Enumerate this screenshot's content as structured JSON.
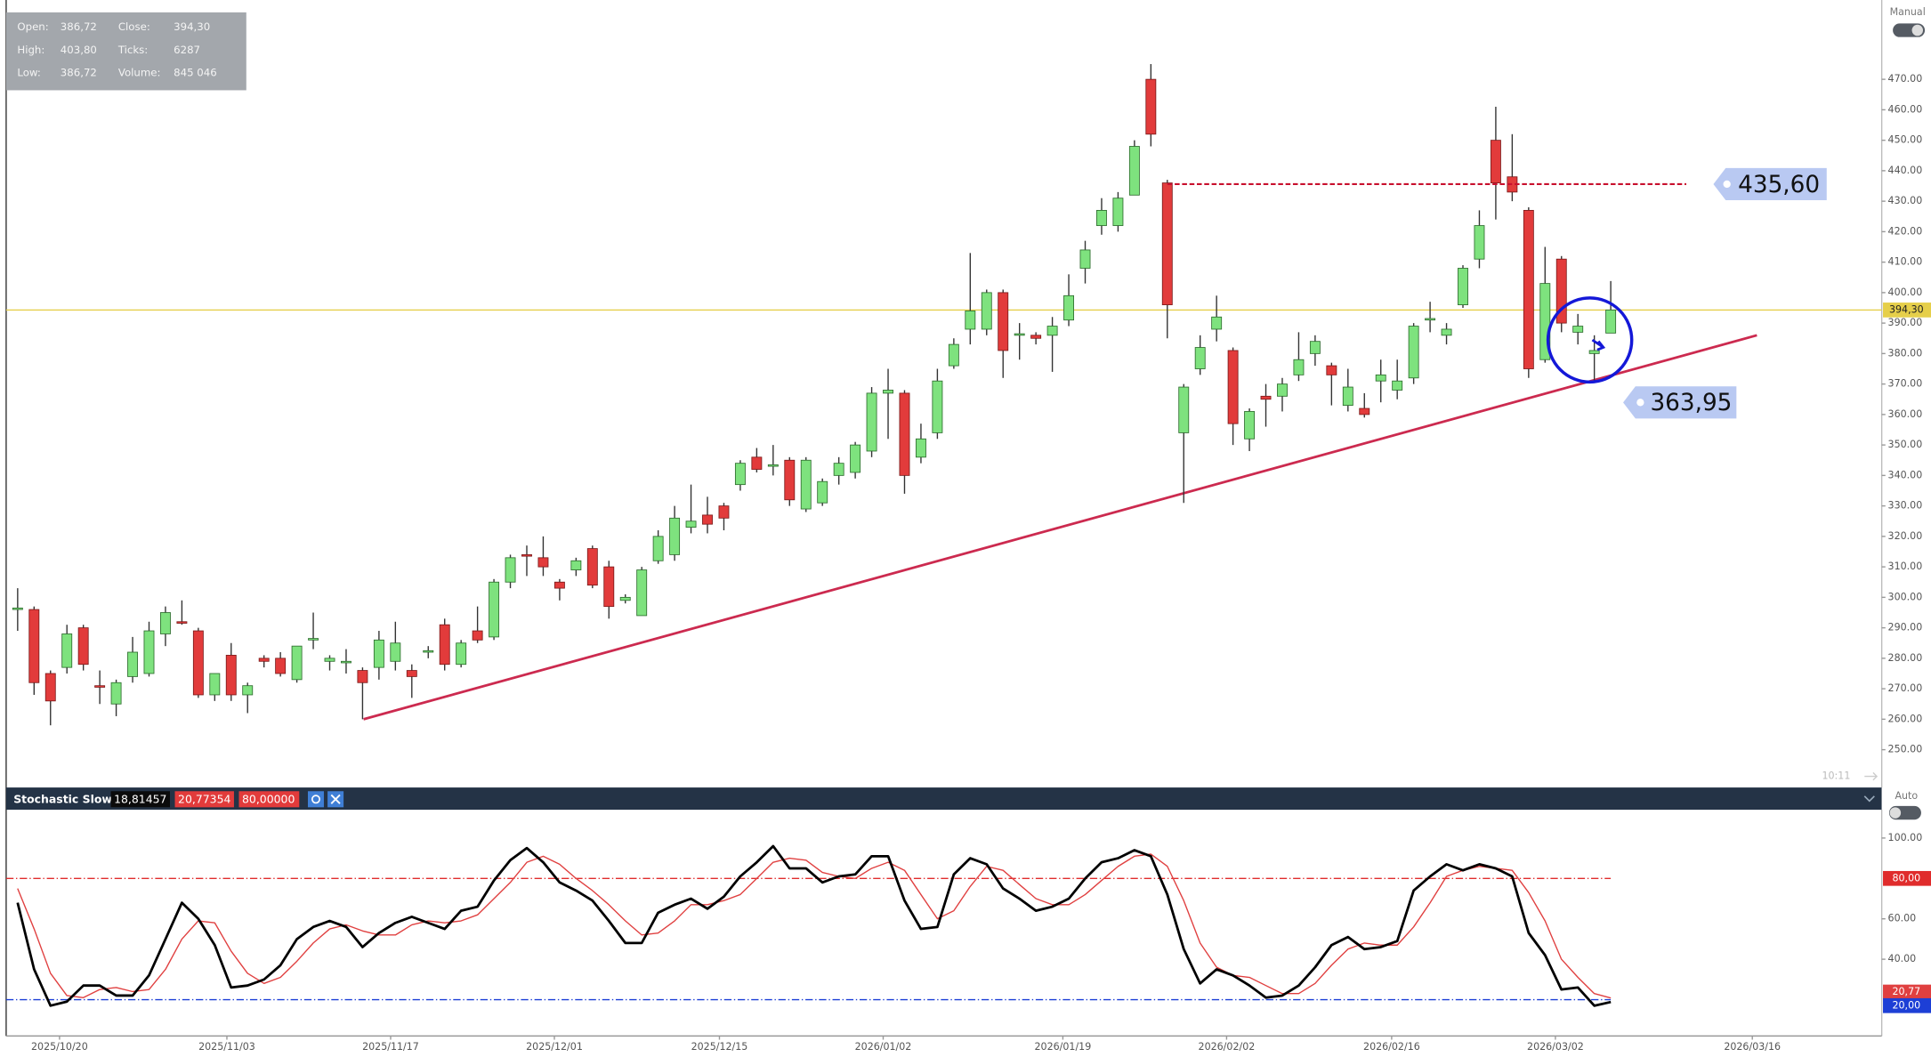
{
  "chart_data": [
    {
      "type": "candlestick",
      "open": [
        296,
        296,
        275,
        277,
        290,
        271,
        265,
        274,
        275,
        288,
        292,
        289,
        268,
        281,
        268,
        280,
        280,
        273,
        286,
        279,
        279,
        276,
        277,
        279,
        276,
        282,
        291,
        278,
        289,
        287,
        305,
        314,
        313,
        305,
        309,
        316,
        310,
        299,
        294,
        312,
        314,
        323,
        327,
        330,
        337,
        346,
        343,
        345,
        329,
        331,
        340,
        341,
        348,
        367,
        367,
        346,
        354,
        376,
        388,
        388,
        400,
        386,
        386,
        386,
        391,
        408,
        422,
        422,
        432,
        470,
        436,
        354,
        375,
        388,
        381,
        352,
        366,
        366,
        373,
        380,
        376,
        363,
        362,
        371,
        368,
        372,
        391,
        386,
        396,
        411,
        450,
        438,
        427,
        378,
        411,
        387,
        380,
        386.72
      ],
      "high": [
        303,
        297,
        276,
        291,
        291,
        276,
        273,
        287,
        292,
        297,
        299,
        290,
        275,
        285,
        272,
        281,
        282,
        284,
        295,
        281,
        283,
        277,
        289,
        292,
        278,
        284,
        293,
        286,
        297,
        306,
        314,
        317,
        320,
        306,
        313,
        317,
        312,
        301,
        310,
        322,
        330,
        337,
        333,
        331,
        345,
        349,
        350,
        346,
        346,
        339,
        346,
        351,
        369,
        375,
        368,
        357,
        375,
        385,
        413,
        401,
        401,
        390,
        387,
        392,
        406,
        417,
        431,
        433,
        450,
        475,
        437,
        370,
        386,
        399,
        382,
        362,
        370,
        372,
        387,
        386,
        377,
        375,
        367,
        378,
        378,
        390,
        397,
        390,
        409,
        427,
        461,
        452,
        428,
        415,
        412,
        393,
        386,
        403.8
      ],
      "low": [
        289,
        268,
        258,
        275,
        276,
        265,
        261,
        272,
        274,
        284,
        291,
        267,
        266,
        266,
        262,
        277,
        274,
        272,
        283,
        276,
        275,
        260,
        273,
        276,
        267,
        280,
        276,
        277,
        285,
        286,
        303,
        307,
        307,
        299,
        307,
        303,
        293,
        298,
        294,
        311,
        312,
        321,
        321,
        322,
        335,
        341,
        340,
        330,
        328,
        330,
        337,
        339,
        346,
        352,
        334,
        344,
        352,
        375,
        383,
        386,
        372,
        378,
        383,
        374,
        389,
        403,
        419,
        420,
        432,
        448,
        385,
        331,
        373,
        384,
        350,
        348,
        356,
        361,
        371,
        376,
        363,
        361,
        359,
        364,
        365,
        370,
        387,
        383,
        395,
        408,
        424,
        430,
        372,
        377,
        387,
        383,
        371,
        386.72
      ],
      "close": [
        296.5,
        272,
        266,
        288,
        278,
        270.5,
        272,
        282,
        289,
        295,
        291.5,
        268,
        275,
        268,
        271,
        279,
        275,
        284,
        286.5,
        280,
        279,
        272,
        286,
        285,
        274,
        282.5,
        278,
        285,
        286,
        305,
        313,
        313.5,
        310,
        303,
        312,
        304,
        297,
        300,
        309,
        320,
        326,
        325,
        324,
        326,
        344,
        342,
        343.5,
        332,
        345,
        338,
        344,
        350,
        367,
        368,
        340,
        352,
        371,
        383,
        394,
        400,
        381,
        386.5,
        385,
        389,
        399,
        414,
        427,
        431,
        448,
        452,
        396,
        369,
        382,
        392,
        357,
        361,
        365,
        370,
        378,
        384,
        373,
        369,
        360,
        373,
        371,
        389,
        391.5,
        388,
        408,
        422,
        436,
        433,
        375,
        403,
        390,
        389,
        381,
        394.3
      ],
      "up_color": "#7ee27e",
      "down_color": "#e23b3b",
      "xlim": [
        -0.7,
        113.5
      ],
      "ylim": [
        238,
        494
      ],
      "xticks": [
        {
          "value": 2.55,
          "label": "2025/10/20"
        },
        {
          "value": 12.74,
          "label": "2025/11/03"
        },
        {
          "value": 22.71,
          "label": "2025/11/17"
        },
        {
          "value": 32.68,
          "label": "2025/12/01"
        },
        {
          "value": 42.73,
          "label": "2025/12/15"
        },
        {
          "value": 52.7,
          "label": "2026/01/02"
        },
        {
          "value": 63.64,
          "label": "2026/01/19"
        },
        {
          "value": 73.61,
          "label": "2026/02/02"
        },
        {
          "value": 83.66,
          "label": "2026/02/16"
        },
        {
          "value": 93.63,
          "label": "2026/03/02"
        },
        {
          "value": 105.62,
          "label": "2026/03/16"
        }
      ],
      "yticks": [
        {
          "value": 250,
          "label": "250.00"
        },
        {
          "value": 260,
          "label": "260.00"
        },
        {
          "value": 270,
          "label": "270.00"
        },
        {
          "value": 280,
          "label": "280.00"
        },
        {
          "value": 290,
          "label": "290.00"
        },
        {
          "value": 300,
          "label": "300.00"
        },
        {
          "value": 310,
          "label": "310.00"
        },
        {
          "value": 320,
          "label": "320.00"
        },
        {
          "value": 330,
          "label": "330.00"
        },
        {
          "value": 340,
          "label": "340.00"
        },
        {
          "value": 350,
          "label": "350.00"
        },
        {
          "value": 360,
          "label": "360.00"
        },
        {
          "value": 370,
          "label": "370.00"
        },
        {
          "value": 380,
          "label": "380.00"
        },
        {
          "value": 390,
          "label": "390.00"
        },
        {
          "value": 400,
          "label": "400.00"
        },
        {
          "value": 410,
          "label": "410.00"
        },
        {
          "value": 420,
          "label": "420.00"
        },
        {
          "value": 430,
          "label": "430.00"
        },
        {
          "value": 440,
          "label": "440.00"
        },
        {
          "value": 450,
          "label": "450.00"
        },
        {
          "value": 460,
          "label": "460.00"
        },
        {
          "value": 470,
          "label": "470.00"
        }
      ],
      "price_line": {
        "value": 394.3,
        "label": "394,30",
        "color": "#e6cf4a"
      },
      "level": {
        "value": 435.6,
        "label": "435,60",
        "from": 70,
        "to": 101.6,
        "color": "#c8102e"
      },
      "trendline": {
        "x": [
          21.06,
          105.9
        ],
        "y": [
          260,
          386
        ],
        "color": "#cc2a4f"
      },
      "callout": {
        "value": 363.95,
        "label": "363,95"
      },
      "ohlc_box": [
        [
          "Open:",
          "386,72",
          "Close:",
          "394,30"
        ],
        [
          "High:",
          "403,80",
          "Ticks:",
          "6287"
        ],
        [
          "Low:",
          "386,72",
          "Volume:",
          "845 046"
        ]
      ],
      "time_label": "10:11",
      "mode_label": "Manual"
    },
    {
      "type": "line",
      "title": "Stochastic Slow",
      "header_values": [
        "18,81457",
        "20,77354",
        "80,00000"
      ],
      "series": [
        {
          "color": "#000000",
          "values": [
            68,
            35,
            17,
            19,
            27,
            27,
            22,
            22,
            32,
            50,
            68,
            60,
            47,
            26,
            27,
            30,
            37,
            50,
            56,
            59,
            56,
            46,
            53,
            58,
            61,
            58,
            55,
            64,
            66,
            79,
            89,
            95,
            88,
            78,
            74,
            69,
            59,
            48,
            48,
            63,
            67,
            70,
            65,
            71,
            81,
            88,
            96,
            85,
            85,
            78,
            81,
            82,
            91,
            91,
            69,
            55,
            56,
            82,
            90,
            87,
            75,
            70,
            64,
            66,
            70,
            80,
            88,
            90,
            94,
            91,
            72,
            45,
            28,
            35,
            32,
            27,
            21,
            22,
            27,
            36,
            47,
            51,
            45,
            46,
            49,
            74,
            81,
            87,
            84,
            87,
            85,
            81,
            53,
            42,
            25,
            26,
            17,
            18.81457
          ]
        },
        {
          "color": "#e04040",
          "end_label": "20,77",
          "values": [
            75,
            55,
            33,
            22,
            21,
            25,
            26,
            24,
            25,
            35,
            50,
            59,
            58,
            44,
            33,
            28,
            31,
            39,
            48,
            55,
            57,
            54,
            52,
            52,
            57,
            59,
            58,
            59,
            62,
            70,
            78,
            88,
            91,
            87,
            80,
            74,
            67,
            59,
            52,
            53,
            59,
            67,
            67,
            69,
            72,
            80,
            88,
            90,
            89,
            83,
            81,
            80,
            85,
            88,
            84,
            72,
            60,
            64,
            76,
            86,
            84,
            77,
            70,
            67,
            67,
            72,
            79,
            86,
            91,
            92,
            86,
            69,
            48,
            36,
            32,
            31,
            27,
            23,
            23,
            28,
            37,
            45,
            48,
            47,
            47,
            56,
            68,
            81,
            84,
            86,
            85,
            84,
            73,
            59,
            40,
            31,
            23,
            20.77354
          ]
        }
      ],
      "xlim": [
        -0.7,
        113.5
      ],
      "ylim": [
        2,
        114
      ],
      "yticks": [
        {
          "value": 40,
          "label": "40.00"
        },
        {
          "value": 60,
          "label": "60.00"
        },
        {
          "value": 100,
          "label": "100.00"
        }
      ],
      "levels": [
        {
          "value": 80,
          "label": "80,00",
          "color": "#e02c2c"
        },
        {
          "value": 20,
          "label": "20,00",
          "color": "#1d3fd6"
        }
      ],
      "mode_label": "Auto"
    }
  ]
}
